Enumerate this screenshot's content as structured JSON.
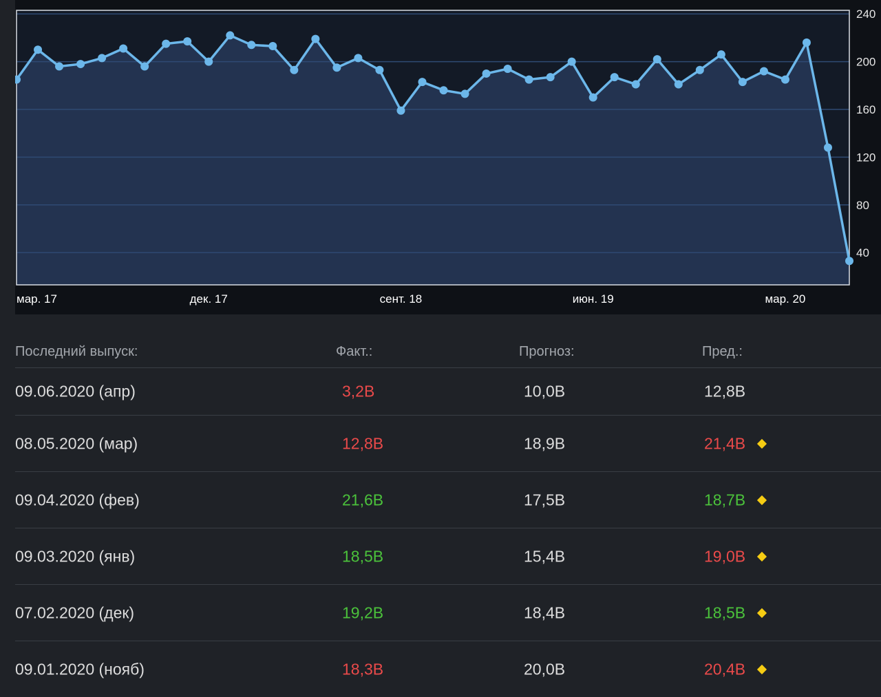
{
  "colors": {
    "background": "#1f2227",
    "chart_background": "#0e1116",
    "line": "#6cb7ea",
    "area_fill": "#233350",
    "negative": "#ea4a4a",
    "positive": "#4bc23b",
    "neutral": "#dcdcdc",
    "header": "#a3a7ad",
    "marker": "#f5cc13"
  },
  "chart_data": {
    "type": "area",
    "x_tick_labels": [
      "мар. 17",
      "дек. 17",
      "сент. 18",
      "июн. 19",
      "мар. 20"
    ],
    "y_ticks": [
      40,
      80,
      120,
      160,
      200,
      240
    ],
    "ylim": [
      13,
      243
    ],
    "grid": true,
    "y_axis_position": "right",
    "values": [
      185,
      210,
      196,
      198,
      203,
      211,
      196,
      215,
      217,
      200,
      222,
      214,
      213,
      193,
      219,
      195,
      203,
      193,
      159,
      183,
      176,
      173,
      190,
      194,
      185,
      187,
      200,
      170,
      187,
      181,
      202,
      181,
      193,
      206,
      183,
      192,
      185,
      216,
      128,
      33
    ]
  },
  "table": {
    "headers": {
      "release": "Последний выпуск:",
      "actual": "Факт.:",
      "forecast": "Прогноз:",
      "previous": "Пред.:"
    },
    "rows": [
      {
        "date": "09.06.2020 (апр)",
        "actual": "3,2B",
        "actual_status": "negative",
        "forecast": "10,0B",
        "previous": "12,8B",
        "previous_status": "neutral",
        "revised": false
      },
      {
        "date": "08.05.2020 (мар)",
        "actual": "12,8B",
        "actual_status": "negative",
        "forecast": "18,9B",
        "previous": "21,4B",
        "previous_status": "negative",
        "revised": true
      },
      {
        "date": "09.04.2020 (фев)",
        "actual": "21,6B",
        "actual_status": "positive",
        "forecast": "17,5B",
        "previous": "18,7B",
        "previous_status": "positive",
        "revised": true
      },
      {
        "date": "09.03.2020 (янв)",
        "actual": "18,5B",
        "actual_status": "positive",
        "forecast": "15,4B",
        "previous": "19,0B",
        "previous_status": "negative",
        "revised": true
      },
      {
        "date": "07.02.2020 (дек)",
        "actual": "19,2B",
        "actual_status": "positive",
        "forecast": "18,4B",
        "previous": "18,5B",
        "previous_status": "positive",
        "revised": true
      },
      {
        "date": "09.01.2020 (нояб)",
        "actual": "18,3B",
        "actual_status": "negative",
        "forecast": "20,0B",
        "previous": "20,4B",
        "previous_status": "negative",
        "revised": true
      }
    ]
  }
}
